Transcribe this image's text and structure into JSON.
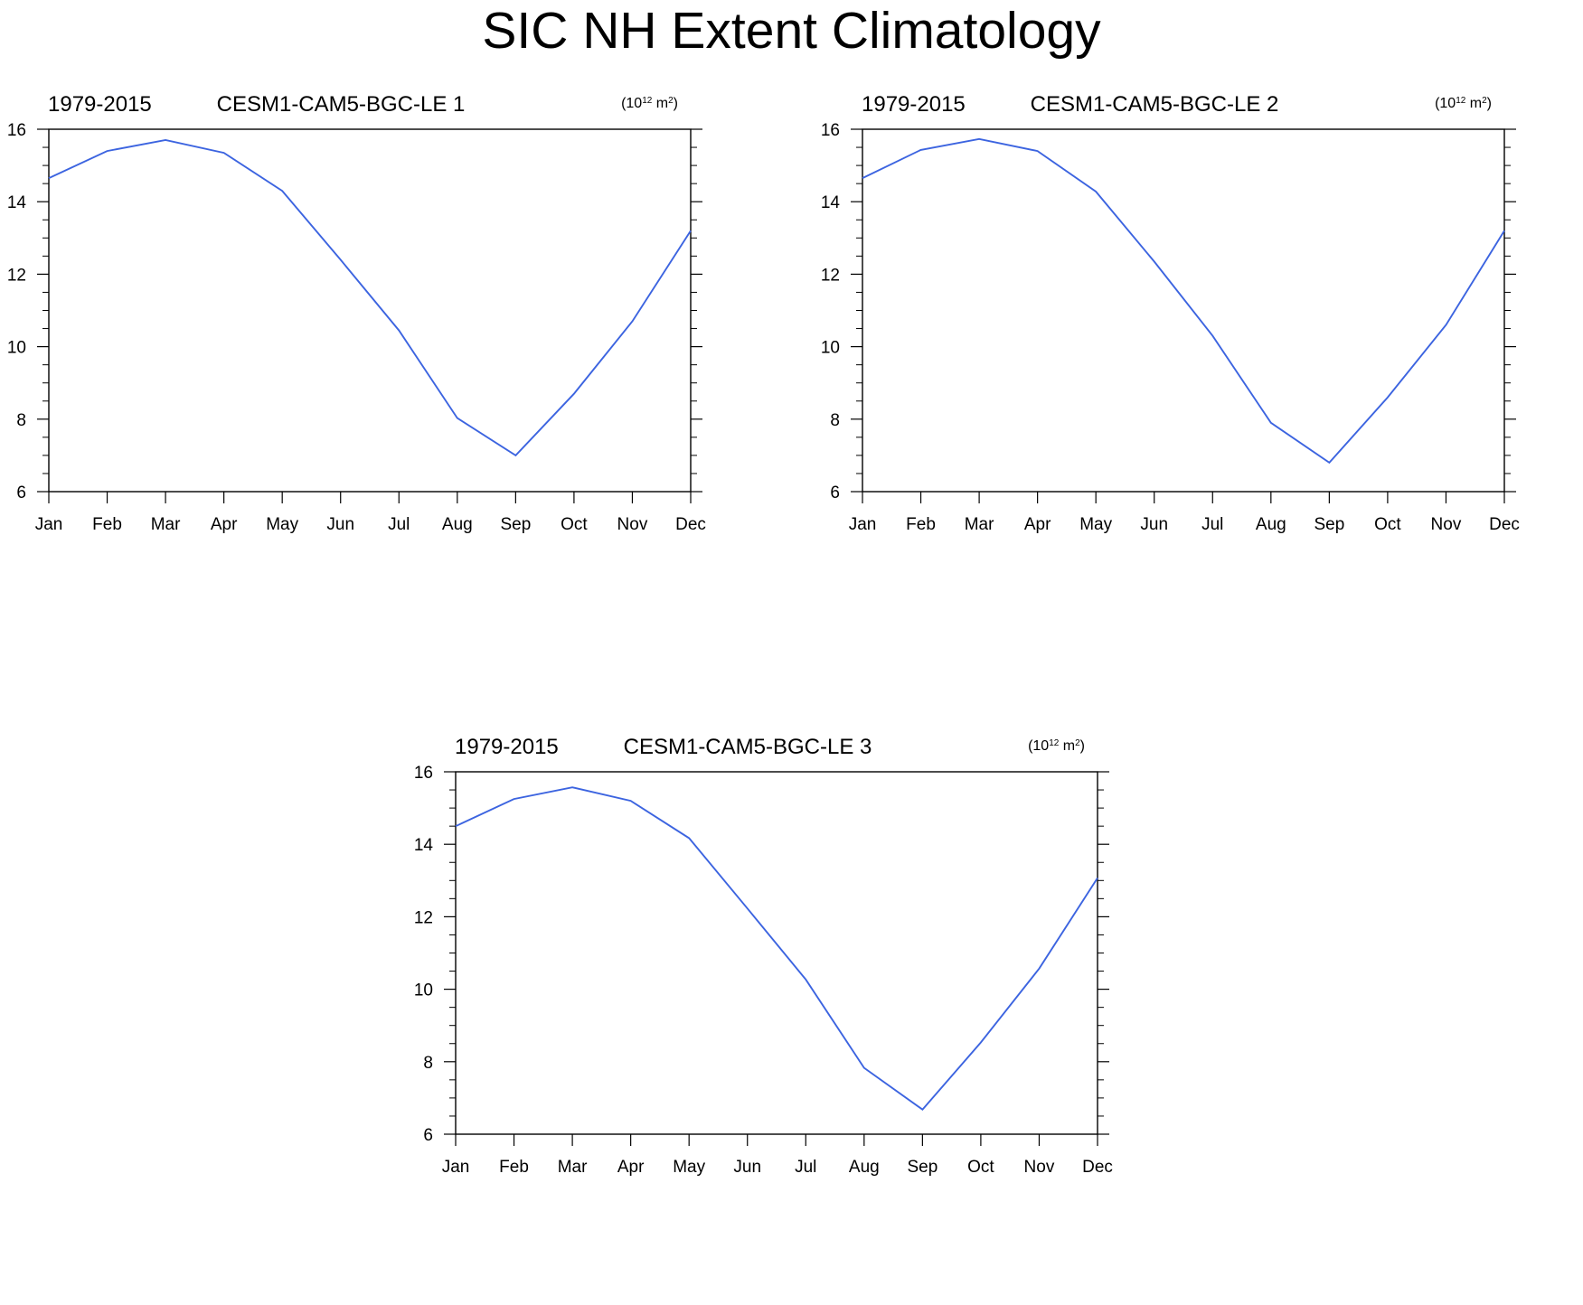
{
  "title": "SIC NH Extent Climatology",
  "chart_data": [
    {
      "type": "line",
      "left_string": "1979-2015",
      "center_string": "CESM1-CAM5-BGC-LE 1",
      "units": {
        "base": "10",
        "exp": "12",
        "unit": "m",
        "unit_exp": "2"
      },
      "categories": [
        "Jan",
        "Feb",
        "Mar",
        "Apr",
        "May",
        "Jun",
        "Jul",
        "Aug",
        "Sep",
        "Oct",
        "Nov",
        "Dec"
      ],
      "values": [
        14.65,
        15.4,
        15.7,
        15.35,
        14.3,
        12.4,
        10.45,
        8.03,
        7.0,
        8.7,
        10.7,
        13.2
      ],
      "ylim": [
        6,
        16
      ],
      "yticks": [
        6,
        8,
        10,
        12,
        14,
        16
      ],
      "line_color": "#3c64e0"
    },
    {
      "type": "line",
      "left_string": "1979-2015",
      "center_string": "CESM1-CAM5-BGC-LE 2",
      "units": {
        "base": "10",
        "exp": "12",
        "unit": "m",
        "unit_exp": "2"
      },
      "categories": [
        "Jan",
        "Feb",
        "Mar",
        "Apr",
        "May",
        "Jun",
        "Jul",
        "Aug",
        "Sep",
        "Oct",
        "Nov",
        "Dec"
      ],
      "values": [
        14.65,
        15.43,
        15.73,
        15.4,
        14.28,
        12.35,
        10.3,
        7.9,
        6.8,
        8.6,
        10.6,
        13.2
      ],
      "ylim": [
        6,
        16
      ],
      "yticks": [
        6,
        8,
        10,
        12,
        14,
        16
      ],
      "line_color": "#3c64e0"
    },
    {
      "type": "line",
      "left_string": "1979-2015",
      "center_string": "CESM1-CAM5-BGC-LE 3",
      "units": {
        "base": "10",
        "exp": "12",
        "unit": "m",
        "unit_exp": "2"
      },
      "categories": [
        "Jan",
        "Feb",
        "Mar",
        "Apr",
        "May",
        "Jun",
        "Jul",
        "Aug",
        "Sep",
        "Oct",
        "Nov",
        "Dec"
      ],
      "values": [
        14.5,
        15.25,
        15.57,
        15.2,
        14.17,
        12.23,
        10.27,
        7.83,
        6.68,
        8.53,
        10.57,
        13.07
      ],
      "ylim": [
        6,
        16
      ],
      "yticks": [
        6,
        8,
        10,
        12,
        14,
        16
      ],
      "line_color": "#3c64e0"
    }
  ]
}
